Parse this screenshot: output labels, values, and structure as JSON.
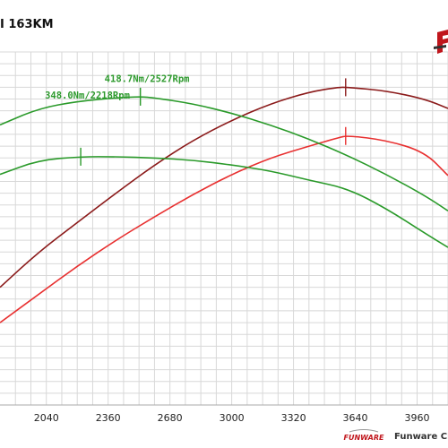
{
  "title": "I 163KM",
  "footer_text": "Funware Chi",
  "watermark_text": "FUNWARE",
  "colors": {
    "power_stock": "#e83030",
    "power_tuned": "#8b1a1a",
    "torque_stock": "#2a9a2a",
    "torque_tuned": "#2a9a2a",
    "grid": "#d8d8d8"
  },
  "chart_data": {
    "type": "line",
    "title": "I 163KM",
    "xlabel": "",
    "ylabel": "",
    "xlim": [
      1800,
      4120
    ],
    "ylim": [
      0,
      30
    ],
    "x_ticks": [
      2040,
      2360,
      2680,
      3000,
      3320,
      3640,
      3960
    ],
    "grid": true,
    "annotations": [
      {
        "text": "418.7Nm/2527Rpm",
        "x": 2527,
        "y": 27.0
      },
      {
        "text": "348.0Nm/2218Rpm",
        "x": 2218,
        "y": 25.6
      }
    ],
    "series": [
      {
        "key": "power_tuned",
        "x": [
          1800,
          2000,
          2200,
          2400,
          2600,
          2800,
          3000,
          3200,
          3400,
          3550,
          3600,
          3800,
          4000,
          4120
        ],
        "y": [
          10.0,
          13.0,
          15.5,
          18.0,
          20.4,
          22.5,
          24.2,
          25.6,
          26.6,
          27.0,
          27.0,
          26.7,
          26.0,
          25.2
        ],
        "marker_x": 3590
      },
      {
        "key": "power_stock",
        "x": [
          1800,
          2000,
          2200,
          2400,
          2600,
          2800,
          3000,
          3200,
          3400,
          3550,
          3600,
          3800,
          4000,
          4120
        ],
        "y": [
          7.0,
          9.4,
          11.8,
          14.0,
          16.0,
          17.9,
          19.6,
          21.0,
          22.0,
          22.7,
          22.9,
          22.5,
          21.5,
          19.5
        ],
        "marker_x": 3590
      },
      {
        "key": "torque_tuned",
        "x": [
          1800,
          2000,
          2200,
          2400,
          2527,
          2600,
          2800,
          3000,
          3200,
          3400,
          3600,
          3800,
          4000,
          4120
        ],
        "y": [
          23.8,
          25.2,
          25.8,
          26.1,
          26.2,
          26.1,
          25.6,
          24.8,
          23.8,
          22.6,
          21.2,
          19.6,
          17.8,
          16.5
        ],
        "marker_x": 2527
      },
      {
        "key": "torque_stock",
        "x": [
          1800,
          2000,
          2218,
          2400,
          2600,
          2800,
          3000,
          3200,
          3400,
          3600,
          3800,
          4000,
          4120
        ],
        "y": [
          19.6,
          20.8,
          21.1,
          21.1,
          21.0,
          20.8,
          20.4,
          19.9,
          19.1,
          18.4,
          16.7,
          14.6,
          13.4
        ],
        "marker_x": 2218
      }
    ]
  }
}
